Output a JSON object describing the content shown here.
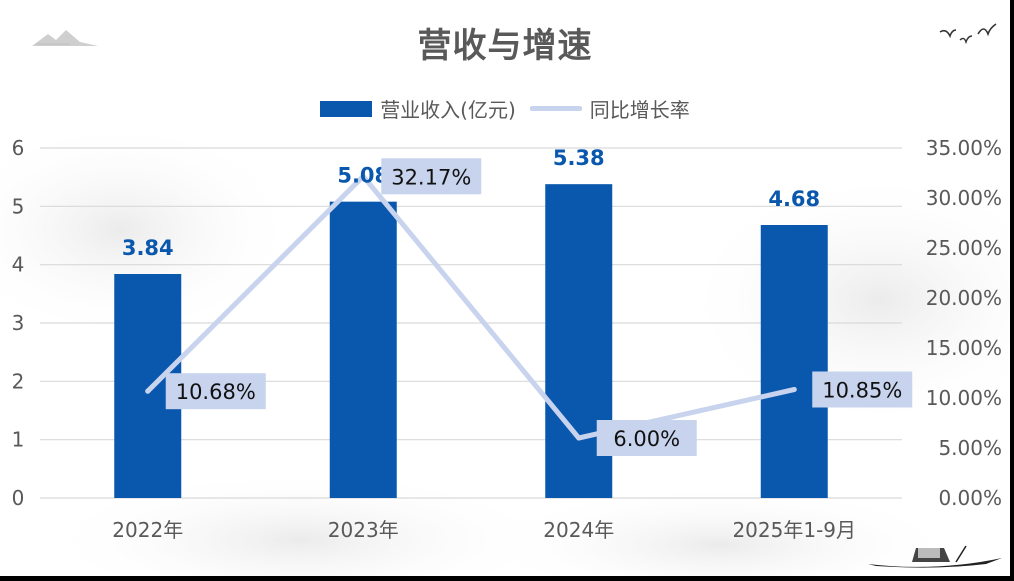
{
  "chart_data": {
    "type": "bar",
    "title": "营收与增速",
    "categories": [
      "2022年",
      "2023年",
      "2024年",
      "2025年1-9月"
    ],
    "series": [
      {
        "name": "营业收入(亿元)",
        "type": "bar",
        "axis": "left",
        "values": [
          3.84,
          5.08,
          5.38,
          4.68
        ],
        "labels": [
          "3.84",
          "5.08",
          "5.38",
          "4.68"
        ],
        "color": "#0a58ad"
      },
      {
        "name": "同比增长率",
        "type": "line",
        "axis": "right",
        "values": [
          10.68,
          32.17,
          6.0,
          10.85
        ],
        "labels": [
          "10.68%",
          "32.17%",
          "6.00%",
          "10.85%"
        ],
        "color": "#c8d3ee"
      }
    ],
    "y_left": {
      "ylim": [
        0,
        6
      ],
      "ticks": [
        "0",
        "1",
        "2",
        "3",
        "4",
        "5",
        "6"
      ]
    },
    "y_right": {
      "ylim": [
        0,
        35
      ],
      "ticks": [
        "0.00%",
        "5.00%",
        "10.00%",
        "15.00%",
        "20.00%",
        "25.00%",
        "30.00%",
        "35.00%"
      ]
    },
    "grid": true,
    "legend_position": "top-center"
  },
  "colors": {
    "bar": "#0a58ad",
    "line": "#c8d3ee",
    "grid": "#d9d9d9",
    "text": "#595959",
    "label_box": "#c8d3ee"
  }
}
